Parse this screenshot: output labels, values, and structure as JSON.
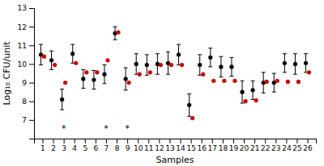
{
  "chart_data": {
    "type": "scatter",
    "xlabel": "Samples",
    "ylabel": "Log₁₀ CFU/unit",
    "x": [
      1,
      2,
      3,
      4,
      5,
      6,
      7,
      8,
      9,
      10,
      11,
      12,
      13,
      14,
      15,
      16,
      17,
      18,
      19,
      20,
      21,
      22,
      23,
      24,
      25,
      26
    ],
    "series": [
      {
        "color": "#000000",
        "values": [
          10.5,
          10.2,
          8.1,
          10.55,
          9.2,
          9.15,
          9.45,
          11.65,
          9.2,
          10.0,
          9.95,
          10.0,
          10.05,
          10.5,
          7.8,
          9.95,
          10.35,
          9.85,
          9.85,
          8.5,
          8.6,
          9.0,
          9.0,
          10.05,
          10.0,
          10.05
        ],
        "err_up": [
          0.55,
          0.5,
          0.55,
          0.5,
          0.5,
          0.5,
          0.5,
          0.35,
          0.6,
          0.55,
          0.55,
          0.55,
          0.6,
          0.55,
          0.6,
          0.55,
          0.5,
          0.55,
          0.5,
          0.6,
          0.5,
          0.55,
          0.5,
          0.5,
          0.55,
          0.5
        ],
        "err_down": [
          0.55,
          0.5,
          0.55,
          0.5,
          0.5,
          0.5,
          0.5,
          0.35,
          0.6,
          0.55,
          0.55,
          0.55,
          0.6,
          0.55,
          0.6,
          0.55,
          0.5,
          0.55,
          0.5,
          0.6,
          0.5,
          0.55,
          0.5,
          0.5,
          0.55,
          0.5
        ]
      },
      {
        "color": "#cc0000",
        "values": [
          10.4,
          9.95,
          9.0,
          10.05,
          9.55,
          9.55,
          10.2,
          11.7,
          9.0,
          9.45,
          9.55,
          9.95,
          9.95,
          9.95,
          7.1,
          9.45,
          9.1,
          9.1,
          9.1,
          8.0,
          8.05,
          9.05,
          9.1,
          9.05,
          9.05,
          9.55
        ]
      }
    ],
    "annotations": [
      {
        "text": "*",
        "x": 3,
        "y": 6.55
      },
      {
        "text": "*",
        "x": 7,
        "y": 6.55
      },
      {
        "text": "*",
        "x": 9,
        "y": 6.55
      }
    ],
    "xlim": [
      0.2,
      26.8
    ],
    "xticks": [
      1,
      2,
      3,
      4,
      5,
      6,
      7,
      8,
      9,
      10,
      11,
      12,
      13,
      14,
      15,
      16,
      17,
      18,
      19,
      20,
      21,
      22,
      23,
      24,
      25,
      26
    ],
    "ylim": [
      6,
      13
    ],
    "yticks": [
      7,
      8,
      9,
      10,
      11,
      12,
      13
    ],
    "grid": false
  }
}
